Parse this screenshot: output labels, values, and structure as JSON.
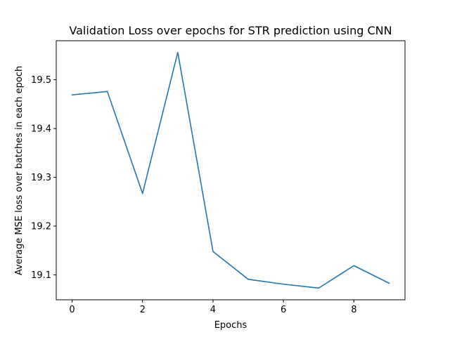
{
  "chart_data": {
    "type": "line",
    "title": "Validation Loss over epochs for STR prediction using CNN",
    "xlabel": "Epochs",
    "ylabel": "Average MSE loss over batches in each epoch",
    "x": [
      0,
      1,
      2,
      3,
      4,
      5,
      6,
      7,
      8,
      9
    ],
    "series": [
      {
        "values": [
          19.469,
          19.476,
          19.267,
          19.556,
          19.148,
          19.091,
          19.081,
          19.073,
          19.119,
          19.083
        ],
        "color": "#1f77b4"
      }
    ],
    "xlim": [
      -0.45,
      9.45
    ],
    "ylim": [
      19.049,
      19.58
    ],
    "xticks": [
      "0",
      "2",
      "4",
      "6",
      "8"
    ],
    "yticks": [
      "19.1",
      "19.2",
      "19.3",
      "19.4",
      "19.5"
    ],
    "grid": false,
    "legend": "none"
  }
}
